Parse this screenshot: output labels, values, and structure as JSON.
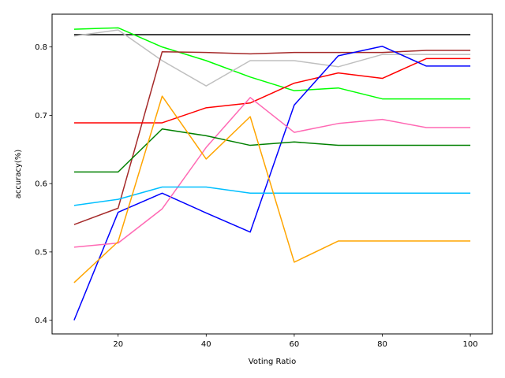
{
  "chart_data": {
    "type": "line",
    "title": "",
    "xlabel": "Voting Ratio",
    "ylabel": "accuracy(%)",
    "xlim": [
      5,
      105
    ],
    "ylim": [
      0.38,
      0.848
    ],
    "xticks": [
      20,
      40,
      60,
      80,
      100
    ],
    "yticks": [
      0.4,
      0.5,
      0.6,
      0.7,
      0.8
    ],
    "grid": false,
    "legend": "none",
    "x": [
      10,
      20,
      30,
      40,
      50,
      60,
      70,
      80,
      90,
      100
    ],
    "series": [
      {
        "color": "#000000",
        "values": [
          0.818,
          0.818,
          0.818,
          0.818,
          0.818,
          0.818,
          0.818,
          0.818,
          0.818,
          0.818
        ]
      },
      {
        "color": "#00ff00",
        "values": [
          0.826,
          0.828,
          0.8,
          0.78,
          0.756,
          0.736,
          0.74,
          0.724,
          0.724,
          0.724
        ]
      },
      {
        "color": "#bfbfbf",
        "values": [
          0.816,
          0.825,
          0.78,
          0.743,
          0.78,
          0.78,
          0.771,
          0.789,
          0.789,
          0.789
        ]
      },
      {
        "color": "#a52a2a",
        "values": [
          0.54,
          0.564,
          0.793,
          0.792,
          0.79,
          0.792,
          0.792,
          0.792,
          0.795,
          0.795
        ]
      },
      {
        "color": "#ff0000",
        "values": [
          0.689,
          0.689,
          0.689,
          0.711,
          0.718,
          0.747,
          0.762,
          0.754,
          0.783,
          0.783
        ]
      },
      {
        "color": "#0000ff",
        "values": [
          0.4,
          0.558,
          0.586,
          0.557,
          0.529,
          0.715,
          0.787,
          0.801,
          0.772,
          0.772
        ]
      },
      {
        "color": "#ff69b4",
        "values": [
          0.507,
          0.513,
          0.563,
          0.653,
          0.726,
          0.675,
          0.688,
          0.694,
          0.682,
          0.682
        ]
      },
      {
        "color": "#008000",
        "values": [
          0.617,
          0.617,
          0.68,
          0.67,
          0.656,
          0.661,
          0.656,
          0.656,
          0.656,
          0.656
        ]
      },
      {
        "color": "#00bfff",
        "values": [
          0.568,
          0.577,
          0.595,
          0.595,
          0.586,
          0.586,
          0.586,
          0.586,
          0.586,
          0.586
        ]
      },
      {
        "color": "#ffa500",
        "values": [
          0.455,
          0.515,
          0.728,
          0.636,
          0.698,
          0.485,
          0.516,
          0.516,
          0.516,
          0.516
        ]
      }
    ]
  }
}
